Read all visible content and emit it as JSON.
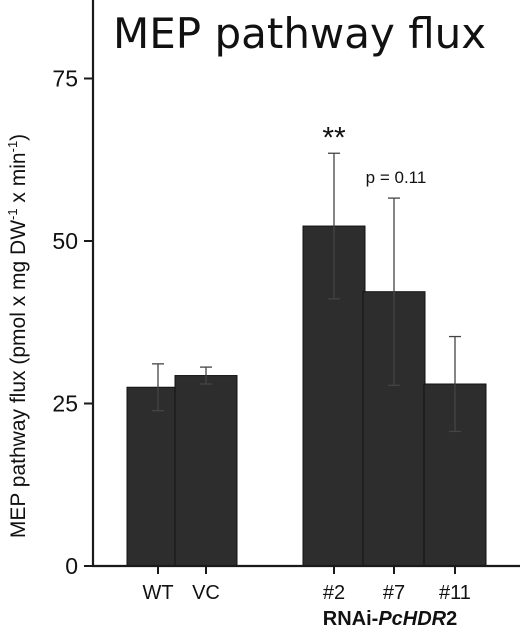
{
  "chart_data": {
    "type": "bar",
    "title": "MEP pathway flux",
    "ylabel": {
      "parts": [
        "MEP pathway flux (pmol x mg DW",
        "-1",
        " x min",
        "-1",
        ")"
      ]
    },
    "xlabel": "",
    "ylim": [
      0,
      85
    ],
    "yticks": [
      "0",
      "25",
      "50",
      "75"
    ],
    "ytick_values": [
      0,
      25,
      50,
      75
    ],
    "categories": [
      "WT",
      "VC",
      "#2",
      "#7",
      "#11"
    ],
    "values": [
      27.5,
      29.3,
      52.3,
      42.2,
      28.0
    ],
    "errors": [
      3.6,
      1.3,
      11.2,
      14.4,
      7.3
    ],
    "annotations": [
      "",
      "",
      "**",
      "p = 0.11",
      ""
    ],
    "group_label": {
      "prefix": "RNAi-",
      "italic": "PcHDR",
      "suffix": "2"
    },
    "colors": {
      "bar": "#2d2d2d",
      "axis": "#1a1a1a"
    }
  }
}
